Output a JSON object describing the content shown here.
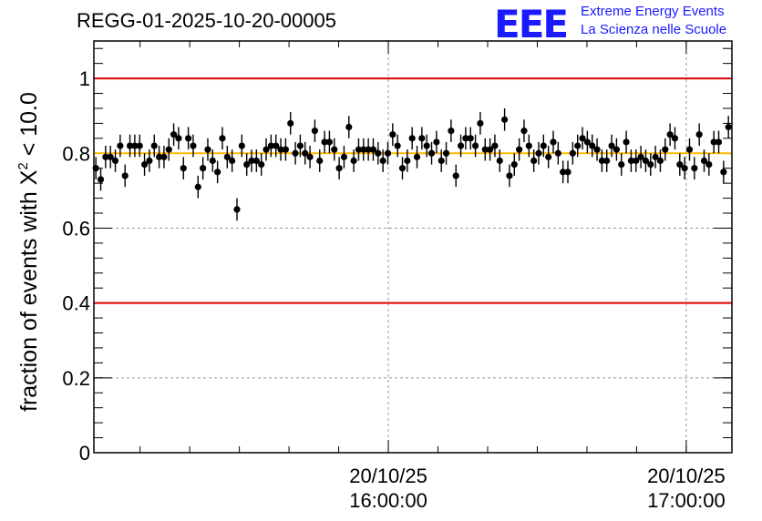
{
  "header": {
    "run_title": "REGG-01-2025-10-20-00005",
    "logo_letters": "EEE",
    "logo_line1": "Extreme Energy Events",
    "logo_line2": "La Scienza nelle Scuole"
  },
  "chart_data": {
    "type": "scatter",
    "title": "REGG-01-2025-10-20-00005",
    "xlabel": "",
    "ylabel": "fraction of events with X² < 10.0",
    "ylabel_parts": {
      "prefix": "fraction of events with X",
      "sup": "2",
      "suffix": " < 10.0"
    },
    "x_axis": {
      "type": "time",
      "start": "2025-10-20 15:00:42",
      "end": "2025-10-20 17:09:12"
    },
    "ylim": [
      0,
      1.1
    ],
    "y_ticks": [
      "0",
      "0.2",
      "0.4",
      "0.6",
      "0.8",
      "1"
    ],
    "x_tick_labels": [
      {
        "x": "2025-10-20 16:00:00",
        "date": "20/10/25",
        "time": "16:00:00"
      },
      {
        "x": "2025-10-20 17:00:00",
        "date": "20/10/25",
        "time": "17:00:00"
      }
    ],
    "grid": true,
    "reference_lines": [
      {
        "y": 1.0,
        "color": "#dd0000"
      },
      {
        "y": 0.4,
        "color": "#dd0000"
      },
      {
        "y": 0.8,
        "color": "#ffbb00"
      }
    ],
    "marker_color": "#000000",
    "error_bar": 0.03,
    "series": [
      {
        "y": [
          0.76,
          0.73,
          0.79,
          0.79,
          0.78,
          0.82,
          0.74,
          0.82,
          0.82,
          0.82,
          0.77,
          0.78,
          0.82,
          0.79,
          0.79,
          0.81,
          0.85,
          0.84,
          0.76,
          0.84,
          0.82,
          0.71,
          0.76,
          0.81,
          0.78,
          0.75,
          0.84,
          0.79,
          0.78,
          0.65,
          0.82,
          0.77,
          0.78,
          0.78,
          0.77,
          0.81,
          0.82,
          0.82,
          0.81,
          0.81,
          0.88,
          0.8,
          0.82,
          0.8,
          0.79,
          0.86,
          0.78,
          0.83,
          0.83,
          0.81,
          0.76,
          0.79,
          0.87,
          0.78,
          0.81,
          0.81,
          0.81,
          0.81,
          0.8,
          0.78,
          0.8,
          0.85,
          0.82,
          0.76,
          0.78,
          0.84,
          0.79,
          0.84,
          0.82,
          0.8,
          0.83,
          0.78,
          0.8,
          0.86,
          0.74,
          0.82,
          0.84,
          0.84,
          0.82,
          0.88,
          0.81,
          0.81,
          0.82,
          0.78,
          0.89,
          0.74,
          0.77,
          0.81,
          0.86,
          0.82,
          0.78,
          0.8,
          0.82,
          0.79,
          0.83,
          0.8,
          0.75,
          0.75,
          0.8,
          0.82,
          0.84,
          0.83,
          0.82,
          0.81,
          0.78,
          0.78,
          0.82,
          0.81,
          0.77,
          0.83,
          0.78,
          0.78,
          0.79,
          0.78,
          0.77,
          0.79,
          0.78,
          0.81,
          0.85,
          0.84,
          0.77,
          0.76,
          0.81,
          0.76,
          0.85,
          0.78,
          0.77,
          0.83,
          0.83,
          0.75,
          0.87
        ]
      }
    ]
  }
}
